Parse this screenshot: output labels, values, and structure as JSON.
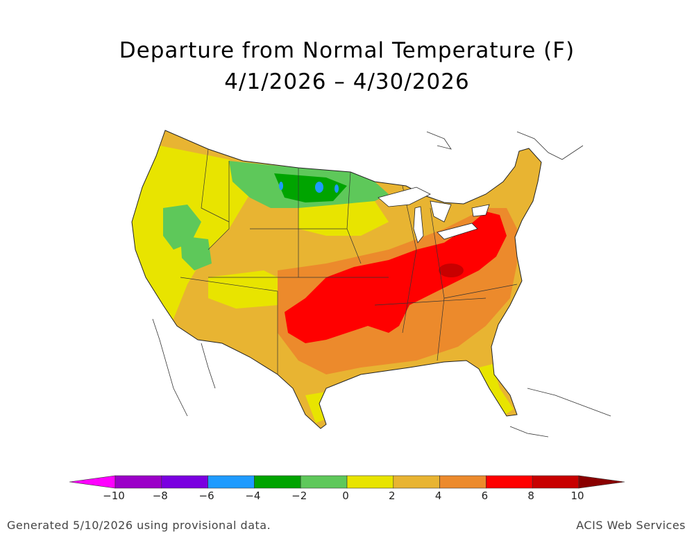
{
  "title": {
    "line1": "Departure from Normal Temperature (F)",
    "line2": "4/1/2026 – 4/30/2026"
  },
  "legend": {
    "ticks": [
      "−10",
      "−8",
      "−6",
      "−4",
      "−2",
      "0",
      "2",
      "4",
      "6",
      "8",
      "10"
    ],
    "colors": [
      "#ff00ff",
      "#9b00c8",
      "#7a00e0",
      "#1e9bff",
      "#00a400",
      "#5ec85a",
      "#e8e400",
      "#e8b432",
      "#ec8a2c",
      "#ff0000",
      "#c80000",
      "#8a0000"
    ]
  },
  "footer": {
    "left": "Generated 5/10/2026 using provisional data.",
    "right": "ACIS Web Services"
  }
}
